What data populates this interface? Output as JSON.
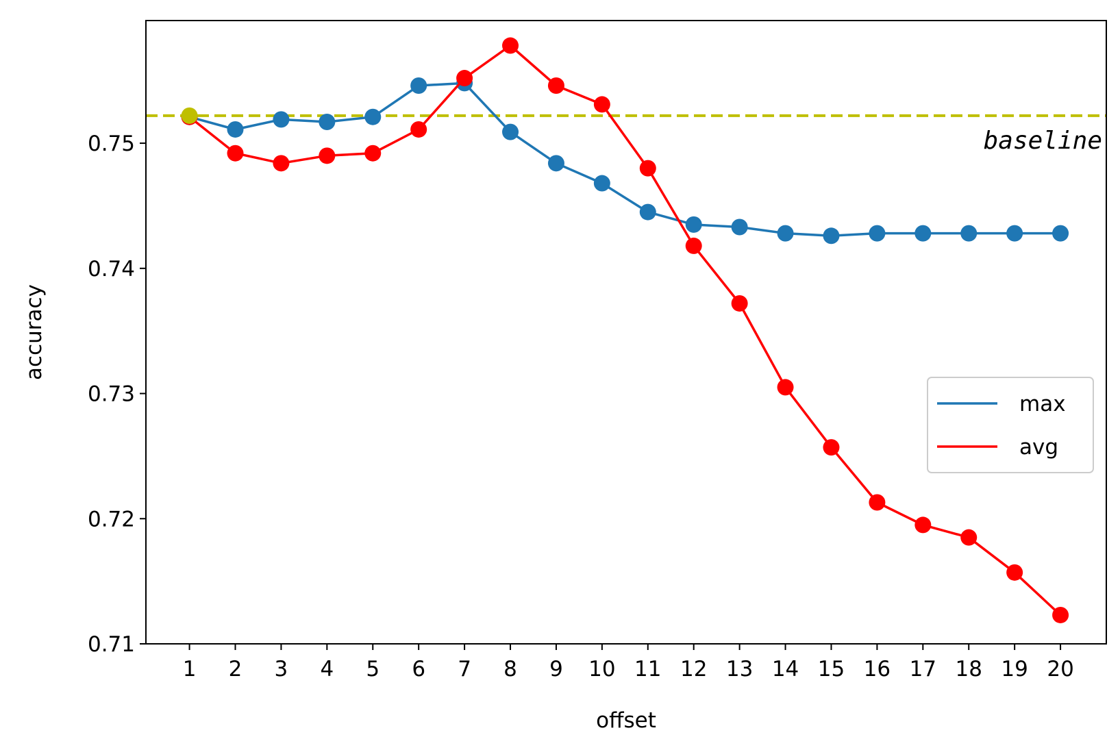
{
  "chart_data": {
    "type": "line",
    "title": "",
    "xlabel": "offset",
    "ylabel": "accuracy",
    "x": [
      1,
      2,
      3,
      4,
      5,
      6,
      7,
      8,
      9,
      10,
      11,
      12,
      13,
      14,
      15,
      16,
      17,
      18,
      19,
      20
    ],
    "xlim": [
      0.05,
      21.0
    ],
    "ylim": [
      0.71,
      0.7598
    ],
    "y_ticks": [
      0.71,
      0.72,
      0.73,
      0.74,
      0.75
    ],
    "y_tick_labels": [
      "0.71",
      "0.72",
      "0.73",
      "0.74",
      "0.75"
    ],
    "x_tick_labels": [
      "1",
      "2",
      "3",
      "4",
      "5",
      "6",
      "7",
      "8",
      "9",
      "10",
      "11",
      "12",
      "13",
      "14",
      "15",
      "16",
      "17",
      "18",
      "19",
      "20"
    ],
    "grid": false,
    "legend_position": "center-right",
    "series": [
      {
        "name": "max",
        "color": "#1f77b4",
        "values": [
          0.7521,
          0.7511,
          0.7519,
          0.7517,
          0.7521,
          0.7546,
          0.7548,
          0.7509,
          0.7484,
          0.7468,
          0.7445,
          0.7435,
          0.7433,
          0.7428,
          0.7426,
          0.7428,
          0.7428,
          0.7428,
          0.7428,
          0.7428
        ]
      },
      {
        "name": "avg",
        "color": "#ff0000",
        "values": [
          0.7521,
          0.7492,
          0.7484,
          0.749,
          0.7492,
          0.7511,
          0.7552,
          0.7578,
          0.7546,
          0.7531,
          0.748,
          0.7418,
          0.7372,
          0.7305,
          0.7257,
          0.7213,
          0.7195,
          0.7185,
          0.7157,
          0.7123
        ]
      }
    ],
    "baseline": {
      "value": 0.7522,
      "label": "baseline",
      "color": "#bfbf00"
    }
  }
}
